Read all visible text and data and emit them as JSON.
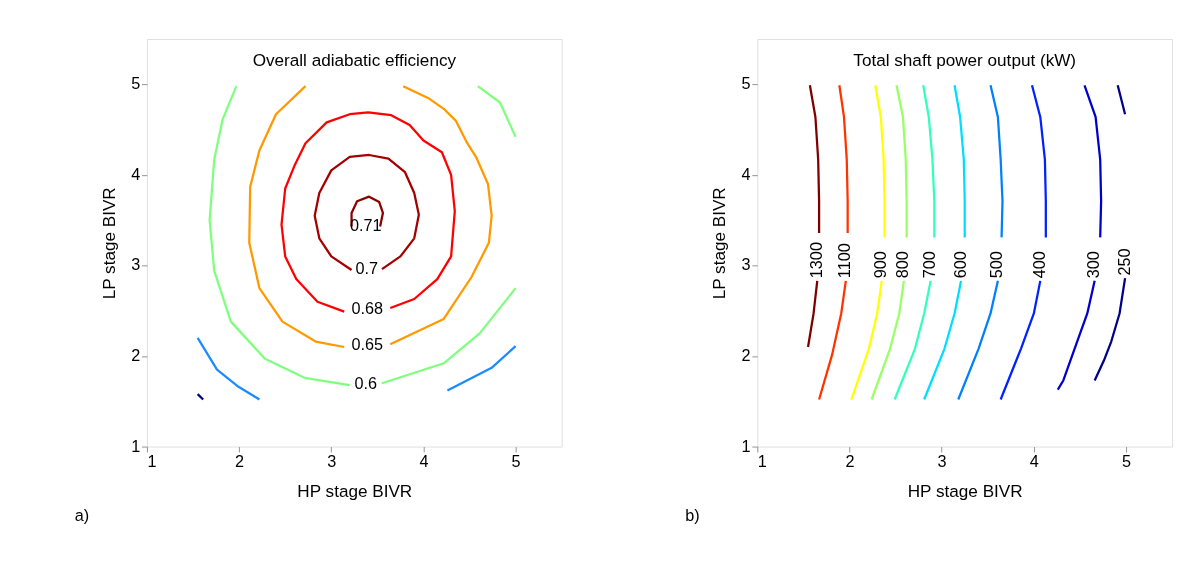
{
  "chart_data": [
    {
      "type": "line",
      "title": "Overall adiabatic efficiency",
      "xlabel": "HP stage BIVR",
      "ylabel": "LP stage BIVR",
      "xlim": [
        1,
        5.5
      ],
      "ylim": [
        1,
        5.5
      ],
      "xticks": [
        1,
        2,
        3,
        4,
        5
      ],
      "yticks": [
        1,
        2,
        3,
        4,
        5
      ],
      "legend": false,
      "grid": false,
      "annotations": [
        "a)"
      ],
      "series": [
        {
          "name": "0.71",
          "color": "#8b0000",
          "x": [
            3.22,
            3.22,
            3.28,
            3.41,
            3.52,
            3.56,
            3.53
          ],
          "values": [
            3.43,
            3.58,
            3.71,
            3.76,
            3.7,
            3.58,
            3.43
          ]
        },
        {
          "name": "0.7",
          "color": "#a50000",
          "x": [
            3.22,
            3.0,
            2.87,
            2.82,
            2.87,
            3.0,
            3.2,
            3.41,
            3.62,
            3.8,
            3.9,
            3.95,
            3.9,
            3.75,
            3.55
          ],
          "values": [
            2.95,
            3.1,
            3.3,
            3.55,
            3.8,
            4.05,
            4.2,
            4.22,
            4.18,
            4.03,
            3.8,
            3.56,
            3.3,
            3.1,
            2.96
          ]
        },
        {
          "name": "0.68",
          "color": "#ff0000",
          "x": [
            3.14,
            2.85,
            2.62,
            2.5,
            2.46,
            2.5,
            2.6,
            2.72,
            2.95,
            3.2,
            3.4,
            3.65,
            3.85,
            4.0,
            4.2,
            4.3,
            4.34,
            4.3,
            4.15,
            3.9,
            3.64
          ],
          "values": [
            2.49,
            2.6,
            2.85,
            3.1,
            3.45,
            3.85,
            4.1,
            4.35,
            4.58,
            4.67,
            4.69,
            4.66,
            4.55,
            4.38,
            4.25,
            4.0,
            3.6,
            3.1,
            2.85,
            2.63,
            2.53
          ]
        },
        {
          "name": "0.65",
          "color": "#ff9900",
          "x": [
            2.72,
            2.4,
            2.22,
            2.12,
            2.11,
            2.22,
            2.47,
            2.83,
            3.14,
            null,
            3.64,
            4.22,
            4.52,
            4.71,
            4.74,
            4.7,
            4.57,
            4.47,
            4.35,
            4.22,
            4.05,
            3.78
          ],
          "values": [
            4.98,
            4.67,
            4.27,
            3.87,
            3.25,
            2.75,
            2.38,
            2.16,
            2.1,
            null,
            2.13,
            2.41,
            2.87,
            3.25,
            3.55,
            3.9,
            4.2,
            4.36,
            4.6,
            4.73,
            4.85,
            4.98
          ]
        },
        {
          "name": "0.6",
          "color": "#7fff7f",
          "x": [
            1.97,
            1.82,
            1.73,
            1.68,
            1.73,
            1.91,
            2.28,
            2.71,
            3.2,
            null,
            3.55,
            4.22,
            4.61,
            5.0,
            null,
            4.59,
            4.83,
            5.0
          ],
          "values": [
            4.98,
            4.61,
            4.17,
            3.5,
            2.94,
            2.38,
            1.97,
            1.76,
            1.68,
            null,
            1.7,
            1.92,
            2.25,
            2.75,
            null,
            4.98,
            4.8,
            4.42
          ]
        },
        {
          "color": "#1a8cff",
          "x": [
            1.55,
            1.76,
            1.98,
            2.22,
            null,
            4.26,
            4.74,
            5.0
          ],
          "values": [
            2.2,
            1.85,
            1.67,
            1.52,
            null,
            1.62,
            1.87,
            2.11
          ]
        },
        {
          "color": "#00008b",
          "x": [
            1.55,
            1.61
          ],
          "values": [
            1.58,
            1.52
          ]
        }
      ]
    },
    {
      "type": "line",
      "title": "Total shaft power output (kW)",
      "xlabel": "HP stage BIVR",
      "ylabel": "LP stage BIVR",
      "xlim": [
        1,
        5.5
      ],
      "ylim": [
        1,
        5.5
      ],
      "xticks": [
        1,
        2,
        3,
        4,
        5
      ],
      "yticks": [
        1,
        2,
        3,
        4,
        5
      ],
      "legend": false,
      "grid": false,
      "annotations": [
        "b)"
      ],
      "series": [
        {
          "name": "1300",
          "color": "#800000",
          "x": [
            1.57,
            1.63,
            1.66,
            1.67,
            1.67,
            null,
            1.65,
            1.61,
            1.55
          ],
          "values": [
            4.99,
            4.64,
            4.17,
            3.71,
            3.36,
            null,
            2.83,
            2.47,
            2.1
          ]
        },
        {
          "name": "1100",
          "color": "#ff3300",
          "x": [
            1.89,
            1.94,
            1.97,
            1.98,
            1.98,
            null,
            1.96,
            1.91,
            1.81,
            1.67
          ],
          "values": [
            4.99,
            4.64,
            4.17,
            3.71,
            3.36,
            null,
            2.83,
            2.47,
            2.01,
            1.52
          ]
        },
        {
          "name": "900",
          "color": "#ffff00",
          "x": [
            2.28,
            2.34,
            2.37,
            2.38,
            2.38,
            null,
            2.35,
            2.3,
            2.21,
            2.02
          ],
          "values": [
            4.99,
            4.64,
            4.17,
            3.71,
            3.31,
            null,
            2.83,
            2.47,
            2.08,
            1.52
          ]
        },
        {
          "name": "800",
          "color": "#99ff66",
          "x": [
            2.51,
            2.58,
            2.61,
            2.62,
            2.62,
            null,
            2.59,
            2.54,
            2.44,
            2.24
          ],
          "values": [
            4.99,
            4.64,
            4.17,
            3.71,
            3.31,
            null,
            2.83,
            2.47,
            2.08,
            1.52
          ]
        },
        {
          "name": "700",
          "color": "#33ffbb",
          "x": [
            2.8,
            2.86,
            2.9,
            2.92,
            2.92,
            null,
            2.88,
            2.81,
            2.71,
            2.49
          ],
          "values": [
            4.99,
            4.64,
            4.17,
            3.71,
            3.31,
            null,
            2.83,
            2.47,
            2.08,
            1.52
          ]
        },
        {
          "name": "600",
          "color": "#00ddff",
          "x": [
            3.14,
            3.2,
            3.24,
            3.25,
            3.25,
            null,
            3.21,
            3.14,
            3.03,
            2.81
          ],
          "values": [
            4.99,
            4.64,
            4.17,
            3.71,
            3.31,
            null,
            2.83,
            2.47,
            2.08,
            1.52
          ]
        },
        {
          "name": "500",
          "color": "#0080ff",
          "x": [
            3.53,
            3.61,
            3.64,
            3.66,
            3.65,
            null,
            3.61,
            3.53,
            3.4,
            3.18
          ],
          "values": [
            4.99,
            4.64,
            4.17,
            3.71,
            3.31,
            null,
            2.83,
            2.47,
            2.08,
            1.52
          ]
        },
        {
          "name": "400",
          "color": "#0022ff",
          "x": [
            3.98,
            4.07,
            4.12,
            4.13,
            4.13,
            null,
            4.07,
            4.0,
            3.86,
            3.64
          ],
          "values": [
            4.99,
            4.64,
            4.17,
            3.71,
            3.31,
            null,
            2.83,
            2.47,
            2.08,
            1.52
          ]
        },
        {
          "name": "300",
          "color": "#0000cc",
          "x": [
            4.55,
            4.67,
            4.72,
            4.73,
            4.72,
            null,
            4.66,
            4.58,
            4.47,
            4.32,
            4.26
          ],
          "values": [
            4.99,
            4.64,
            4.17,
            3.71,
            3.31,
            null,
            2.83,
            2.47,
            2.16,
            1.73,
            1.63
          ]
        },
        {
          "name": "250",
          "color": "#00008b",
          "x": [
            4.91,
            4.99,
            null,
            4.99,
            4.93,
            4.84,
            4.76,
            4.66
          ],
          "values": [
            4.99,
            4.67,
            null,
            2.86,
            2.47,
            2.16,
            1.95,
            1.73
          ]
        }
      ]
    }
  ]
}
